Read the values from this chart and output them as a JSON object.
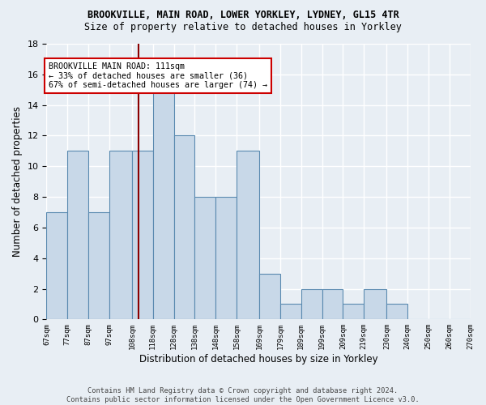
{
  "title1": "BROOKVILLE, MAIN ROAD, LOWER YORKLEY, LYDNEY, GL15 4TR",
  "title2": "Size of property relative to detached houses in Yorkley",
  "xlabel": "Distribution of detached houses by size in Yorkley",
  "ylabel": "Number of detached properties",
  "bar_edges": [
    67,
    77,
    87,
    97,
    108,
    118,
    128,
    138,
    148,
    158,
    169,
    179,
    189,
    199,
    209,
    219,
    230,
    240,
    250,
    260,
    270
  ],
  "bar_heights": [
    7,
    11,
    7,
    11,
    11,
    15,
    12,
    8,
    8,
    11,
    3,
    1,
    2,
    2,
    1,
    2,
    1,
    0,
    0,
    0
  ],
  "tick_labels": [
    "67sqm",
    "77sqm",
    "87sqm",
    "97sqm",
    "108sqm",
    "118sqm",
    "128sqm",
    "138sqm",
    "148sqm",
    "158sqm",
    "169sqm",
    "179sqm",
    "189sqm",
    "199sqm",
    "209sqm",
    "219sqm",
    "230sqm",
    "240sqm",
    "250sqm",
    "260sqm",
    "270sqm"
  ],
  "bar_color": "#c8d8e8",
  "bar_edge_color": "#5a8ab0",
  "bg_color": "#e8eef4",
  "grid_color": "#ffffff",
  "vline_x": 111,
  "vline_color": "#8b0000",
  "annotation_text": "BROOKVILLE MAIN ROAD: 111sqm\n← 33% of detached houses are smaller (36)\n67% of semi-detached houses are larger (74) →",
  "annotation_box_color": "#ffffff",
  "annotation_box_edge": "#cc0000",
  "ylim": [
    0,
    18
  ],
  "yticks": [
    0,
    2,
    4,
    6,
    8,
    10,
    12,
    14,
    16,
    18
  ],
  "footer": "Contains HM Land Registry data © Crown copyright and database right 2024.\nContains public sector information licensed under the Open Government Licence v3.0."
}
